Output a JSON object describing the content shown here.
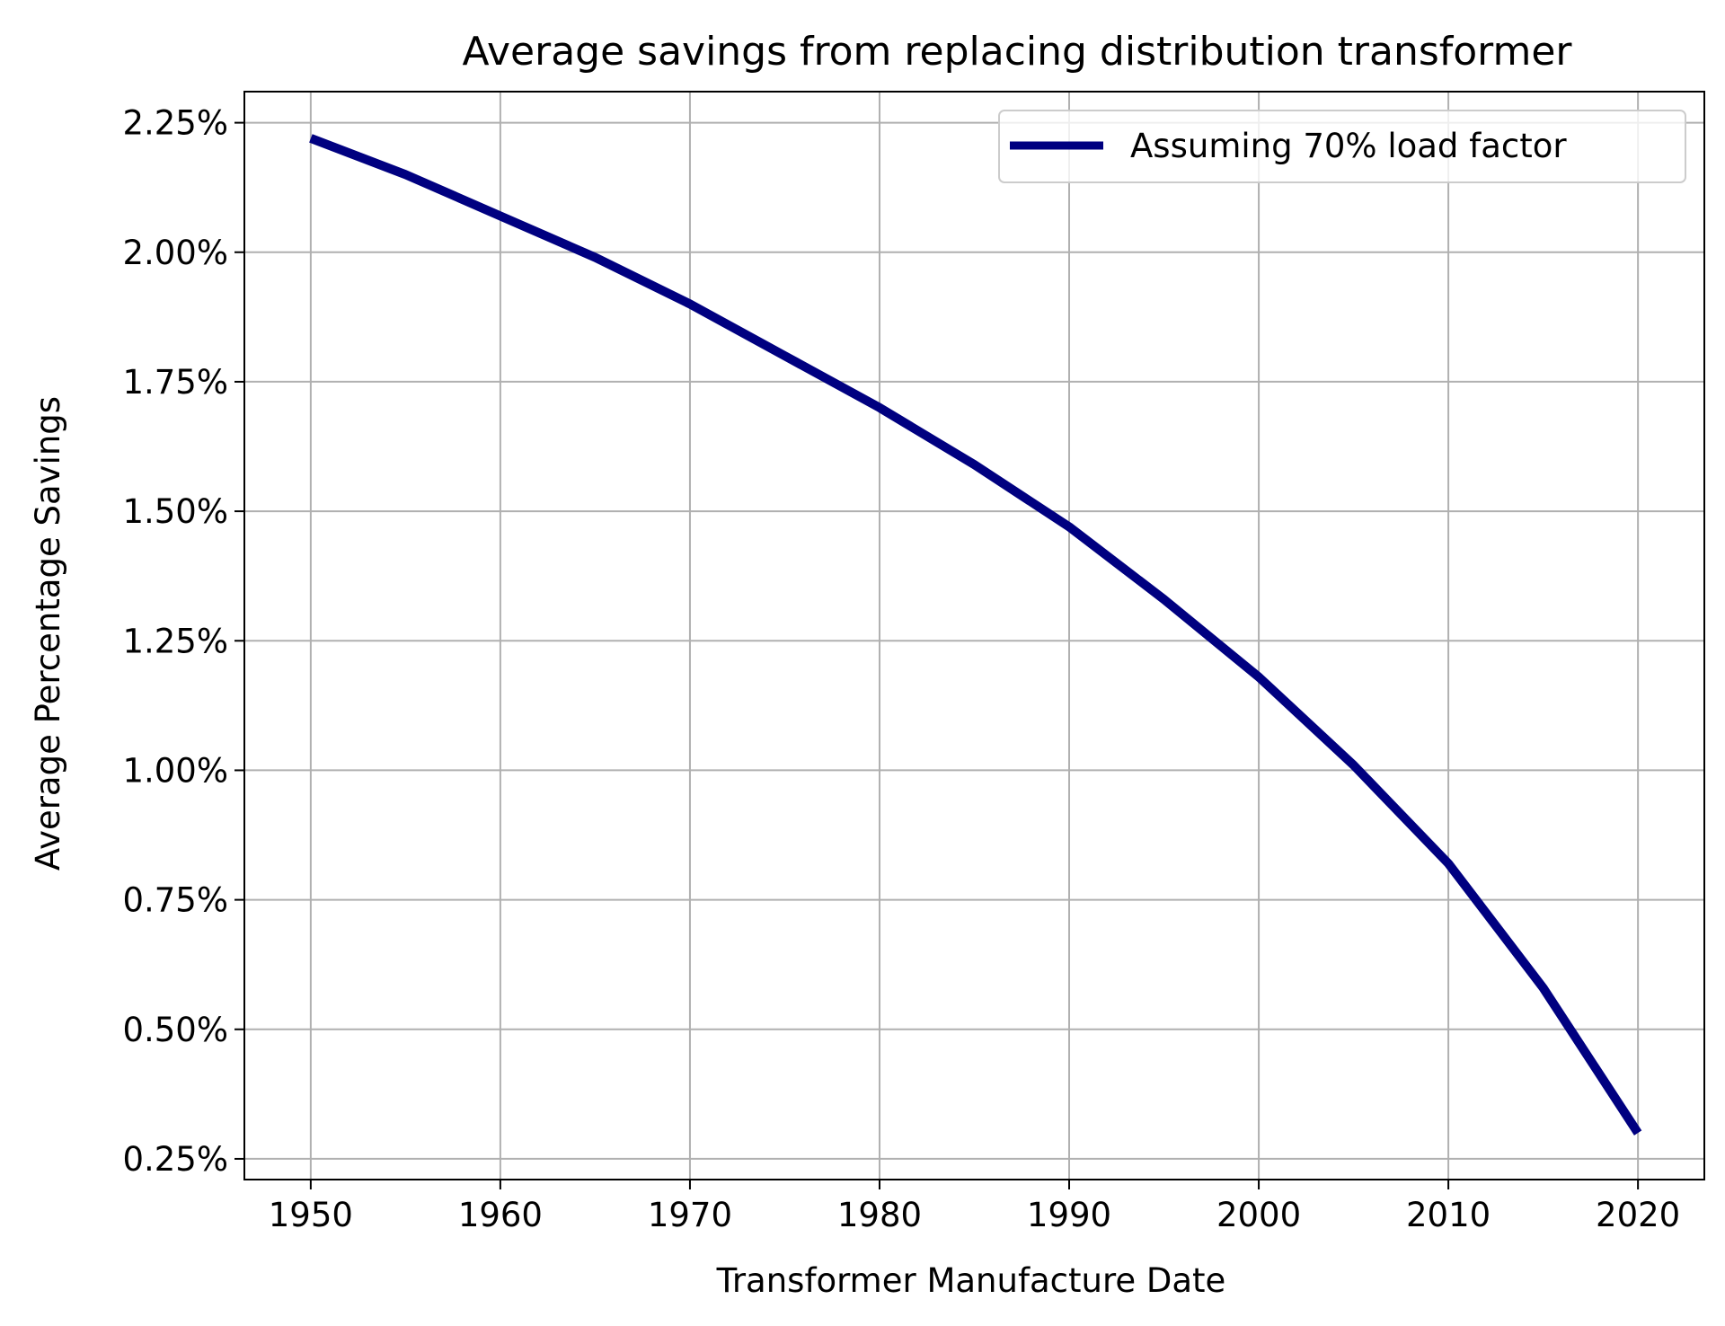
{
  "chart_data": {
    "type": "line",
    "title": "Average savings from replacing distribution transformer",
    "xlabel": "Transformer Manufacture Date",
    "ylabel": "Average Percentage Savings",
    "xlim": [
      1946.5,
      2023.5
    ],
    "ylim": [
      0.21,
      2.31
    ],
    "xticks": [
      1950,
      1960,
      1970,
      1980,
      1990,
      2000,
      2010,
      2020
    ],
    "xtick_labels": [
      "1950",
      "1960",
      "1970",
      "1980",
      "1990",
      "2000",
      "2010",
      "2020"
    ],
    "yticks": [
      0.25,
      0.5,
      0.75,
      1.0,
      1.25,
      1.5,
      1.75,
      2.0,
      2.25
    ],
    "ytick_labels": [
      "0.25%",
      "0.50%",
      "0.75%",
      "1.00%",
      "1.25%",
      "1.50%",
      "1.75%",
      "2.00%",
      "2.25%"
    ],
    "grid": true,
    "legend_position": "top-right",
    "series": [
      {
        "name": "Assuming 70% load factor",
        "color": "#000080",
        "x": [
          1950,
          1955,
          1960,
          1965,
          1970,
          1975,
          1980,
          1985,
          1990,
          1995,
          2000,
          2005,
          2010,
          2015,
          2020
        ],
        "y": [
          2.22,
          2.15,
          2.07,
          1.99,
          1.9,
          1.8,
          1.7,
          1.59,
          1.47,
          1.33,
          1.18,
          1.01,
          0.82,
          0.58,
          0.3
        ]
      }
    ]
  }
}
